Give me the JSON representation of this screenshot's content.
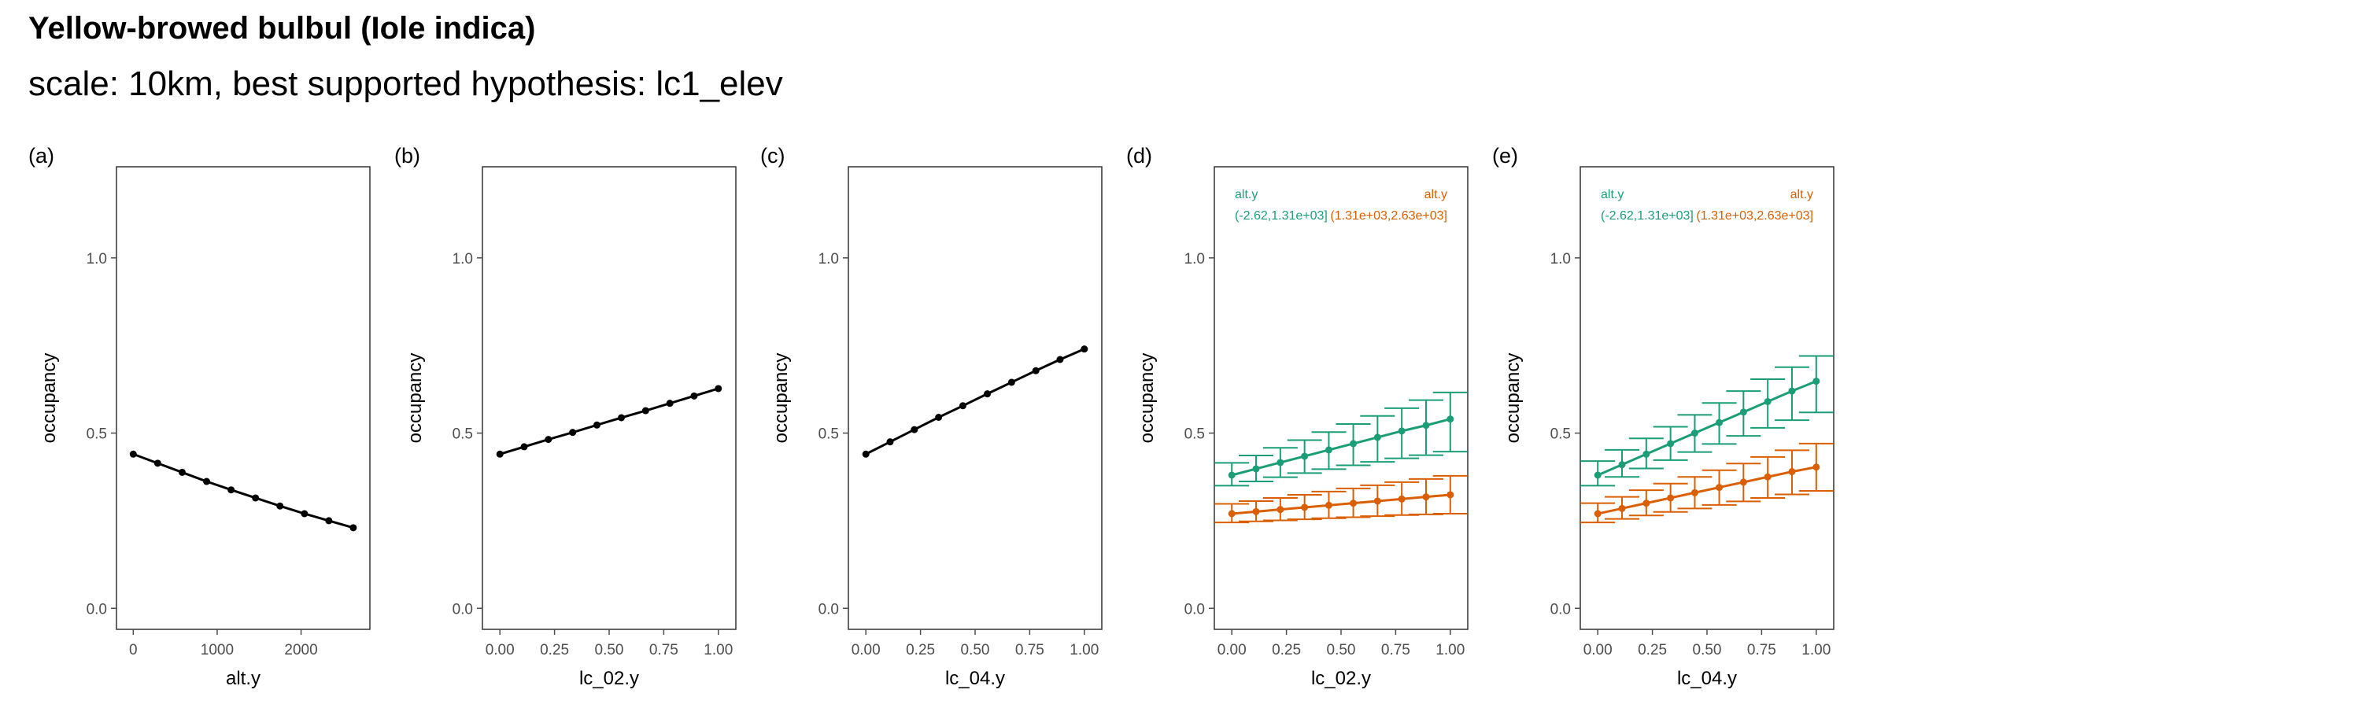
{
  "header": {
    "title": "Yellow-browed bulbul (Iole indica)",
    "subtitle": "scale: 10km, best supported hypothesis: lc1_elev"
  },
  "colors": {
    "line": "#000000",
    "green": "#1B9E77",
    "orange": "#D95F02",
    "axis": "#4D4D4D",
    "grid": "#FFFFFF"
  },
  "chart_data": [
    {
      "panel": "(a)",
      "type": "line",
      "xlabel": "alt.y",
      "ylabel": "occupancy",
      "xlim": [
        -200,
        2820
      ],
      "ylim": [
        -0.06,
        1.26
      ],
      "xticks": [
        0,
        1000,
        2000
      ],
      "xtick_labels": [
        "0",
        "1000",
        "2000"
      ],
      "yticks": [
        0,
        0.5,
        1
      ],
      "ytick_labels": [
        "0.0",
        "0.5",
        "1.0"
      ],
      "series": [
        {
          "color": "#000000",
          "x": [
            0,
            291,
            583,
            874,
            1166,
            1457,
            1748,
            2040,
            2331,
            2622
          ],
          "y": [
            0.44,
            0.414,
            0.388,
            0.362,
            0.338,
            0.315,
            0.292,
            0.27,
            0.25,
            0.23
          ]
        }
      ]
    },
    {
      "panel": "(b)",
      "type": "line",
      "xlabel": "lc_02.y",
      "ylabel": "occupancy",
      "xlim": [
        -0.08,
        1.08
      ],
      "ylim": [
        -0.06,
        1.26
      ],
      "xticks": [
        0,
        0.25,
        0.5,
        0.75,
        1
      ],
      "xtick_labels": [
        "0.00",
        "0.25",
        "0.50",
        "0.75",
        "1.00"
      ],
      "yticks": [
        0,
        0.5,
        1
      ],
      "ytick_labels": [
        "0.0",
        "0.5",
        "1.0"
      ],
      "series": [
        {
          "color": "#000000",
          "x": [
            0,
            0.111,
            0.222,
            0.333,
            0.444,
            0.556,
            0.667,
            0.778,
            0.889,
            1.0
          ],
          "y": [
            0.44,
            0.461,
            0.482,
            0.502,
            0.523,
            0.544,
            0.564,
            0.585,
            0.606,
            0.627
          ]
        }
      ]
    },
    {
      "panel": "(c)",
      "type": "line",
      "xlabel": "lc_04.y",
      "ylabel": "occupancy",
      "xlim": [
        -0.08,
        1.08
      ],
      "ylim": [
        -0.06,
        1.26
      ],
      "xticks": [
        0,
        0.25,
        0.5,
        0.75,
        1
      ],
      "xtick_labels": [
        "0.00",
        "0.25",
        "0.50",
        "0.75",
        "1.00"
      ],
      "yticks": [
        0,
        0.5,
        1
      ],
      "ytick_labels": [
        "0.0",
        "0.5",
        "1.0"
      ],
      "series": [
        {
          "color": "#000000",
          "x": [
            0,
            0.111,
            0.222,
            0.333,
            0.444,
            0.556,
            0.667,
            0.778,
            0.889,
            1.0
          ],
          "y": [
            0.44,
            0.475,
            0.51,
            0.545,
            0.578,
            0.612,
            0.645,
            0.678,
            0.71,
            0.74
          ]
        }
      ]
    },
    {
      "panel": "(d)",
      "type": "line",
      "xlabel": "lc_02.y",
      "ylabel": "occupancy",
      "xlim": [
        -0.08,
        1.08
      ],
      "ylim": [
        -0.06,
        1.26
      ],
      "xticks": [
        0,
        0.25,
        0.5,
        0.75,
        1
      ],
      "xtick_labels": [
        "0.00",
        "0.25",
        "0.50",
        "0.75",
        "1.00"
      ],
      "yticks": [
        0,
        0.5,
        1
      ],
      "ytick_labels": [
        "0.0",
        "0.5",
        "1.0"
      ],
      "legend": [
        {
          "line1": "alt.y",
          "line2": "(-2.62,1.31e+03]",
          "color": "#1B9E77",
          "position": "top-left"
        },
        {
          "line1": "alt.y",
          "line2": "(1.31e+03,2.63e+03]",
          "color": "#D95F02",
          "position": "top-right"
        }
      ],
      "series": [
        {
          "color": "#1B9E77",
          "x": [
            0,
            0.111,
            0.222,
            0.333,
            0.444,
            0.556,
            0.667,
            0.778,
            0.889,
            1.0
          ],
          "y": [
            0.38,
            0.398,
            0.416,
            0.434,
            0.452,
            0.47,
            0.488,
            0.506,
            0.522,
            0.54
          ],
          "lower": [
            0.35,
            0.362,
            0.374,
            0.386,
            0.397,
            0.408,
            0.418,
            0.428,
            0.437,
            0.447
          ],
          "upper": [
            0.415,
            0.436,
            0.458,
            0.48,
            0.503,
            0.526,
            0.549,
            0.571,
            0.594,
            0.616
          ]
        },
        {
          "color": "#D95F02",
          "x": [
            0,
            0.111,
            0.222,
            0.333,
            0.444,
            0.556,
            0.667,
            0.778,
            0.889,
            1.0
          ],
          "y": [
            0.27,
            0.276,
            0.282,
            0.288,
            0.294,
            0.3,
            0.306,
            0.312,
            0.318,
            0.324
          ],
          "lower": [
            0.245,
            0.248,
            0.251,
            0.254,
            0.257,
            0.26,
            0.263,
            0.266,
            0.268,
            0.27
          ],
          "upper": [
            0.298,
            0.306,
            0.315,
            0.324,
            0.333,
            0.342,
            0.351,
            0.36,
            0.369,
            0.378
          ]
        }
      ]
    },
    {
      "panel": "(e)",
      "type": "line",
      "xlabel": "lc_04.y",
      "ylabel": "occupancy",
      "xlim": [
        -0.08,
        1.08
      ],
      "ylim": [
        -0.06,
        1.26
      ],
      "xticks": [
        0,
        0.25,
        0.5,
        0.75,
        1
      ],
      "xtick_labels": [
        "0.00",
        "0.25",
        "0.50",
        "0.75",
        "1.00"
      ],
      "yticks": [
        0,
        0.5,
        1
      ],
      "ytick_labels": [
        "0.0",
        "0.5",
        "1.0"
      ],
      "legend": [
        {
          "line1": "alt.y",
          "line2": "(-2.62,1.31e+03]",
          "color": "#1B9E77",
          "position": "top-left"
        },
        {
          "line1": "alt.y",
          "line2": "(1.31e+03,2.63e+03]",
          "color": "#D95F02",
          "position": "top-right"
        }
      ],
      "series": [
        {
          "color": "#1B9E77",
          "x": [
            0,
            0.111,
            0.222,
            0.333,
            0.444,
            0.556,
            0.667,
            0.778,
            0.889,
            1.0
          ],
          "y": [
            0.38,
            0.41,
            0.44,
            0.47,
            0.5,
            0.53,
            0.56,
            0.59,
            0.62,
            0.648
          ],
          "lower": [
            0.35,
            0.375,
            0.399,
            0.423,
            0.446,
            0.469,
            0.492,
            0.515,
            0.537,
            0.559
          ],
          "upper": [
            0.42,
            0.452,
            0.485,
            0.518,
            0.552,
            0.586,
            0.62,
            0.654,
            0.688,
            0.72
          ]
        },
        {
          "color": "#D95F02",
          "x": [
            0,
            0.111,
            0.222,
            0.333,
            0.444,
            0.556,
            0.667,
            0.778,
            0.889,
            1.0
          ],
          "y": [
            0.27,
            0.285,
            0.3,
            0.315,
            0.33,
            0.345,
            0.36,
            0.375,
            0.39,
            0.403
          ],
          "lower": [
            0.245,
            0.255,
            0.265,
            0.275,
            0.285,
            0.295,
            0.305,
            0.315,
            0.325,
            0.335
          ],
          "upper": [
            0.3,
            0.318,
            0.337,
            0.356,
            0.375,
            0.394,
            0.413,
            0.432,
            0.451,
            0.47
          ]
        }
      ]
    }
  ]
}
